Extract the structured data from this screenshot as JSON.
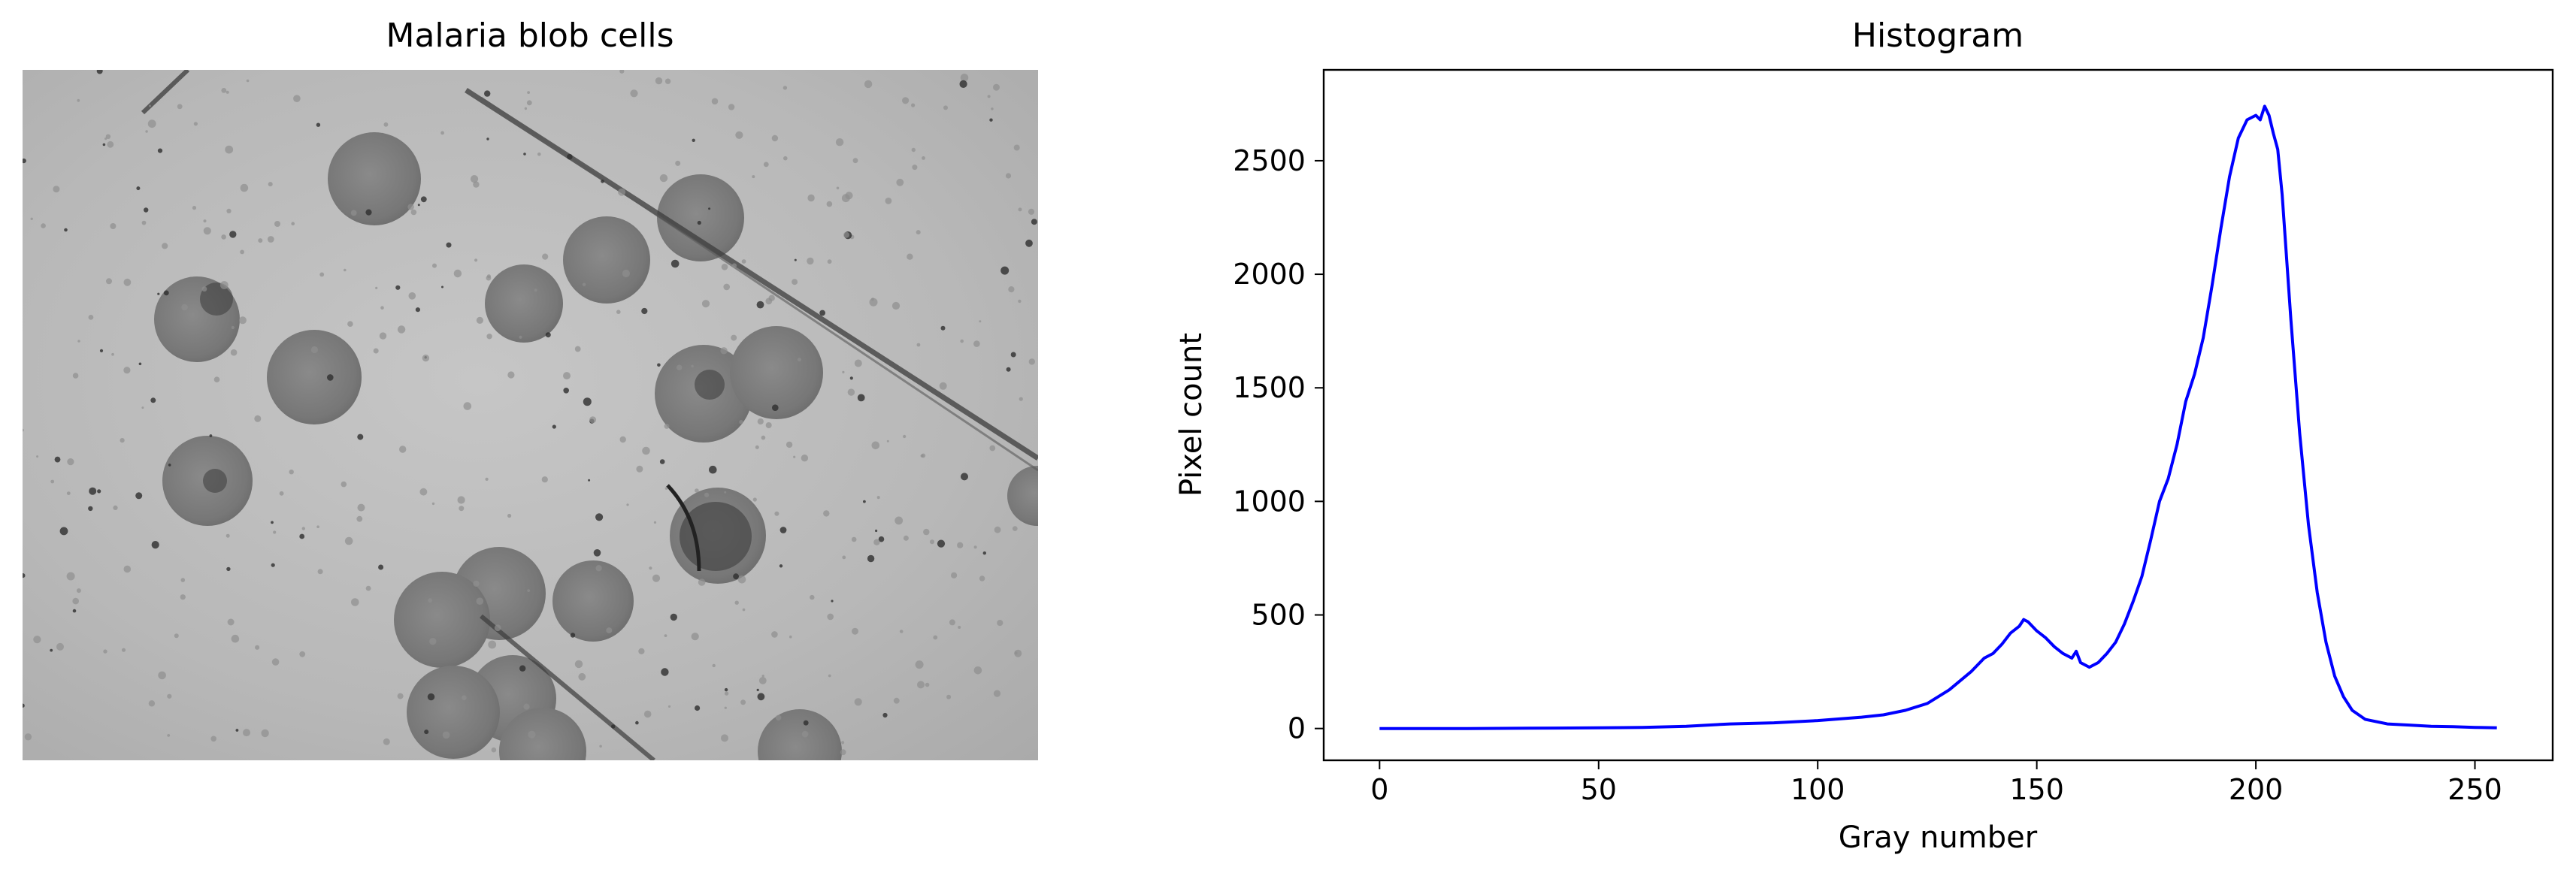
{
  "left_panel": {
    "title": "Malaria blob cells",
    "image": {
      "background": "#b9b9b9",
      "cell_color": "#7c7c7c",
      "cell_dark_color": "#3a3a3a",
      "scratch_color": "#3c3c3c"
    }
  },
  "chart_data": {
    "type": "line",
    "title": "Histogram",
    "xlabel": "Gray number",
    "ylabel": "Pixel count",
    "xlim": [
      -12.75,
      267.75
    ],
    "ylim": [
      -140,
      2900
    ],
    "xticks": [
      0,
      50,
      100,
      150,
      200,
      250
    ],
    "yticks": [
      0,
      500,
      1000,
      1500,
      2000,
      2500
    ],
    "grid": false,
    "series": [
      {
        "color": "#0000ff",
        "x": [
          0,
          20,
          40,
          50,
          60,
          70,
          80,
          90,
          100,
          110,
          115,
          120,
          125,
          130,
          135,
          138,
          140,
          142,
          144,
          146,
          147,
          148,
          150,
          152,
          154,
          156,
          158,
          159,
          160,
          162,
          164,
          166,
          168,
          170,
          172,
          174,
          176,
          178,
          180,
          182,
          184,
          186,
          188,
          190,
          192,
          194,
          196,
          198,
          200,
          201,
          202,
          203,
          204,
          205,
          206,
          208,
          210,
          212,
          214,
          216,
          218,
          220,
          222,
          225,
          230,
          235,
          240,
          245,
          250,
          255
        ],
        "y": [
          0,
          0,
          2,
          3,
          5,
          10,
          20,
          25,
          35,
          50,
          60,
          80,
          110,
          170,
          250,
          310,
          330,
          370,
          420,
          450,
          480,
          470,
          430,
          400,
          360,
          330,
          310,
          340,
          290,
          270,
          290,
          330,
          380,
          460,
          560,
          670,
          830,
          1000,
          1100,
          1250,
          1440,
          1560,
          1720,
          1950,
          2200,
          2430,
          2600,
          2680,
          2700,
          2680,
          2740,
          2700,
          2620,
          2550,
          2350,
          1800,
          1300,
          900,
          600,
          380,
          230,
          140,
          80,
          40,
          20,
          15,
          10,
          8,
          5,
          3
        ]
      }
    ]
  }
}
